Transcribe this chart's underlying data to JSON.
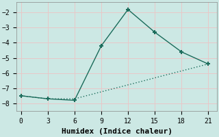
{
  "xlabel": "Humidex (Indice chaleur)",
  "background_color": "#cce8e4",
  "grid_color": "#e8c8c8",
  "line_color": "#1a6b5a",
  "xlim": [
    -0.5,
    22
  ],
  "ylim": [
    -8.5,
    -1.3
  ],
  "xticks": [
    0,
    3,
    6,
    9,
    12,
    15,
    18,
    21
  ],
  "yticks": [
    -8,
    -7,
    -6,
    -5,
    -4,
    -3,
    -2
  ],
  "line1_x": [
    0,
    3,
    6,
    9,
    12,
    15,
    18,
    21
  ],
  "line1_y": [
    -7.5,
    -7.7,
    -7.8,
    -4.2,
    -1.8,
    -3.3,
    -4.6,
    -5.4
  ],
  "line2_x": [
    0,
    3,
    6,
    21
  ],
  "line2_y": [
    -7.5,
    -7.7,
    -7.7,
    -5.4
  ],
  "marker": "+",
  "marker_size": 5,
  "marker_linewidth": 1.5,
  "line_width": 1.0,
  "font_family": "monospace",
  "xlabel_fontsize": 8,
  "tick_fontsize": 7
}
